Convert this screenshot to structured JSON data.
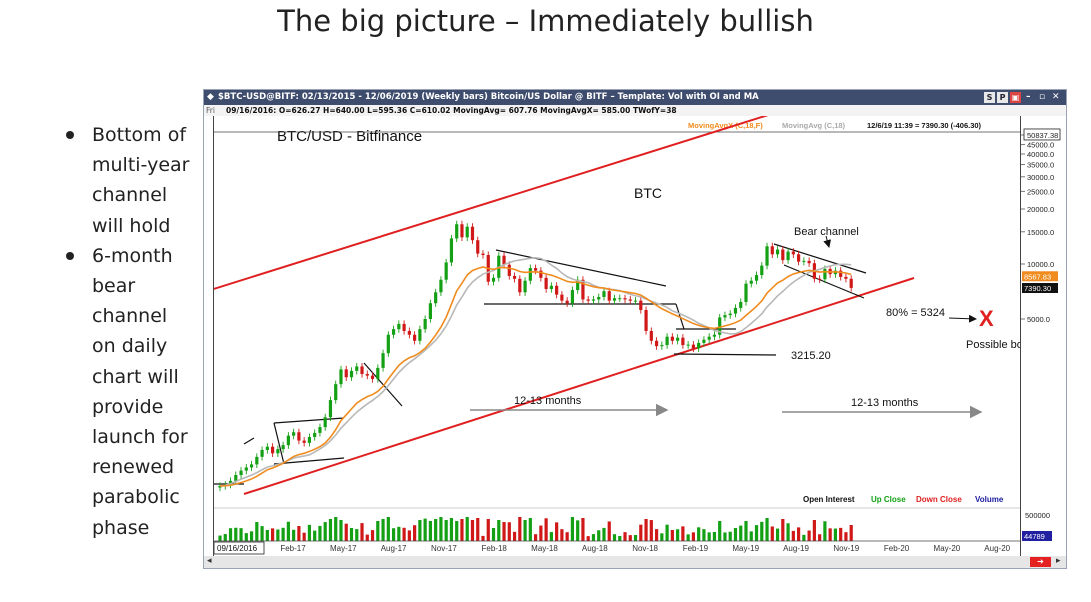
{
  "slide": {
    "title": "The big picture – Immediately bullish",
    "bullets": [
      {
        "lines": [
          "Bottom of",
          "multi-year",
          "channel",
          "will hold"
        ]
      },
      {
        "lines": [
          "6-month",
          "bear",
          "channel",
          "on daily",
          "chart will",
          "provide",
          "launch for",
          "renewed",
          "parabolic",
          "phase"
        ]
      }
    ]
  },
  "window": {
    "title": "$BTC-USD@BITF:  02/13/2015 - 12/06/2019  (Weekly bars)  Bitcoin/US Dollar @ BITF  –  Template: Vol with OI and MA",
    "buttons": [
      "S",
      "P"
    ],
    "quote_label": "Fri",
    "quote": "09/16/2016:  O=626.27  H=640.00  L=595.36  C=610.02  MovingAvg= 607.76  MovingAvgX= 585.00  TWofY=38",
    "ma_legend_1": "MovingAvgX (C,18,F)",
    "ma_legend_2": "MovingAvg (C,18)",
    "last_bar": "12/6/19 11:39 = 7390.30 (-406.30)"
  },
  "chart_data": {
    "type": "candlestick",
    "title": "BTC/USD - Bitfinance",
    "symbol_label": "BTC",
    "price_axis": {
      "scale": "log",
      "ticks": [
        50837.38,
        45000,
        40000,
        35000,
        30000,
        25000,
        20000,
        15000,
        10000,
        5000
      ],
      "tick_labels": [
        "50837.38",
        "45000.0",
        "40000.0",
        "35000.0",
        "30000.0",
        "25000.0",
        "20000.0",
        "15000.0",
        "10000.0",
        "5000.0"
      ],
      "markers": [
        {
          "label": "8567.83",
          "value": 8567.83,
          "color": "#f08c1e"
        },
        {
          "label": "7390.30",
          "value": 7390.3,
          "color": "#111111"
        }
      ]
    },
    "volume_axis": {
      "tick_label": "500000",
      "marker_label": "44789"
    },
    "x_axis": {
      "start_label": "09/16/2016",
      "ticks": [
        "Feb-17",
        "May-17",
        "Aug-17",
        "Nov-17",
        "Feb-18",
        "May-18",
        "Aug-18",
        "Nov-18",
        "Feb-19",
        "May-19",
        "Aug-19",
        "Nov-19",
        "Feb-20",
        "May-20",
        "Aug-20"
      ]
    },
    "weekly_closes": [
      610,
      620,
      650,
      700,
      740,
      770,
      800,
      880,
      960,
      1000,
      920,
      970,
      1020,
      1150,
      1200,
      1080,
      1050,
      1130,
      1190,
      1280,
      1450,
      1800,
      2200,
      2650,
      2400,
      2600,
      2750,
      2500,
      2450,
      2350,
      2700,
      3250,
      4100,
      4400,
      4700,
      4300,
      4100,
      3800,
      4400,
      5000,
      6100,
      7000,
      8200,
      10200,
      13800,
      16500,
      14000,
      16000,
      13500,
      11400,
      11200,
      8000,
      8400,
      11100,
      9900,
      8600,
      8300,
      7000,
      8100,
      9500,
      9200,
      8400,
      7300,
      7600,
      6800,
      6300,
      6100,
      7200,
      8200,
      6400,
      6300,
      6400,
      6600,
      7100,
      6300,
      6500,
      6500,
      6400,
      6300,
      6300,
      5600,
      4300,
      3800,
      3550,
      3600,
      4000,
      3800,
      3950,
      3600,
      3620,
      3450,
      3700,
      3850,
      4000,
      4100,
      5100,
      5250,
      5350,
      5750,
      6200,
      7800,
      8100,
      8700,
      9800,
      12500,
      11300,
      12000,
      10500,
      11700,
      11300,
      10300,
      10400,
      10100,
      8300,
      8250,
      9400,
      8800,
      9200,
      8500,
      8300,
      7400
    ],
    "moving_averages": [
      {
        "name": "MovingAvgX (C,18,F)",
        "color": "#f08c1e"
      },
      {
        "name": "MovingAvg (C,18)",
        "color": "#b8b8b8"
      }
    ],
    "annotations": [
      {
        "text": "Bear channel"
      },
      {
        "text": "3215.20"
      },
      {
        "text": "80% = 5324"
      },
      {
        "text": "X",
        "color": "#e02020"
      },
      {
        "text": "Possible bottom"
      },
      {
        "text": "12-13 months"
      },
      {
        "text": "12-13 months"
      }
    ],
    "volume_legend": [
      {
        "text": "Open Interest",
        "color": "#111111"
      },
      {
        "text": "Up Close",
        "color": "#14a014"
      },
      {
        "text": "Down Close",
        "color": "#e02020"
      },
      {
        "text": "Volume",
        "color": "#1a1aa0"
      }
    ],
    "colors": {
      "up": "#14a014",
      "down": "#d01818",
      "channel": "#e02020",
      "arrow": "#888888"
    }
  }
}
